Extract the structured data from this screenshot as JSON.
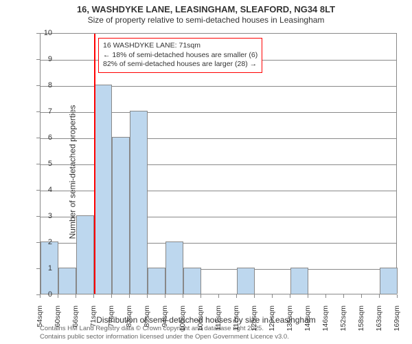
{
  "title": "16, WASHDYKE LANE, LEASINGHAM, SLEAFORD, NG34 8LT",
  "subtitle": "Size of property relative to semi-detached houses in Leasingham",
  "y_label": "Number of semi-detached properties",
  "x_label": "Distribution of semi-detached houses by size in Leasingham",
  "chart": {
    "type": "histogram",
    "bar_color": "#bdd7ee",
    "bar_border_color": "#888888",
    "grid_color": "#888888",
    "background_color": "#ffffff",
    "refline_color": "#ff0000",
    "annotation_border": "#ff0000",
    "ylim": [
      0,
      10
    ],
    "y_ticks": [
      0,
      1,
      2,
      3,
      4,
      5,
      6,
      7,
      8,
      9,
      10
    ],
    "x_tick_labels": [
      "54sqm",
      "60sqm",
      "66sqm",
      "71sqm",
      "77sqm",
      "83sqm",
      "89sqm",
      "94sqm",
      "100sqm",
      "106sqm",
      "112sqm",
      "117sqm",
      "123sqm",
      "129sqm",
      "135sqm",
      "140sqm",
      "146sqm",
      "152sqm",
      "158sqm",
      "163sqm",
      "169sqm"
    ],
    "refline_x_index": 3,
    "bars": [
      {
        "value": 2
      },
      {
        "value": 1
      },
      {
        "value": 3
      },
      {
        "value": 8
      },
      {
        "value": 6
      },
      {
        "value": 7
      },
      {
        "value": 1
      },
      {
        "value": 2
      },
      {
        "value": 1
      },
      {
        "value": 0
      },
      {
        "value": 0
      },
      {
        "value": 1
      },
      {
        "value": 0
      },
      {
        "value": 0
      },
      {
        "value": 1
      },
      {
        "value": 0
      },
      {
        "value": 0
      },
      {
        "value": 0
      },
      {
        "value": 0
      },
      {
        "value": 1
      }
    ],
    "annotation": {
      "line1": "16 WASHDYKE LANE: 71sqm",
      "line2": "← 18% of semi-detached houses are smaller (6)",
      "line3": "82% of semi-detached houses are larger (28) →"
    }
  },
  "footer": {
    "line1": "Contains HM Land Registry data © Crown copyright and database right 2025.",
    "line2": "Contains public sector information licensed under the Open Government Licence v3.0."
  }
}
